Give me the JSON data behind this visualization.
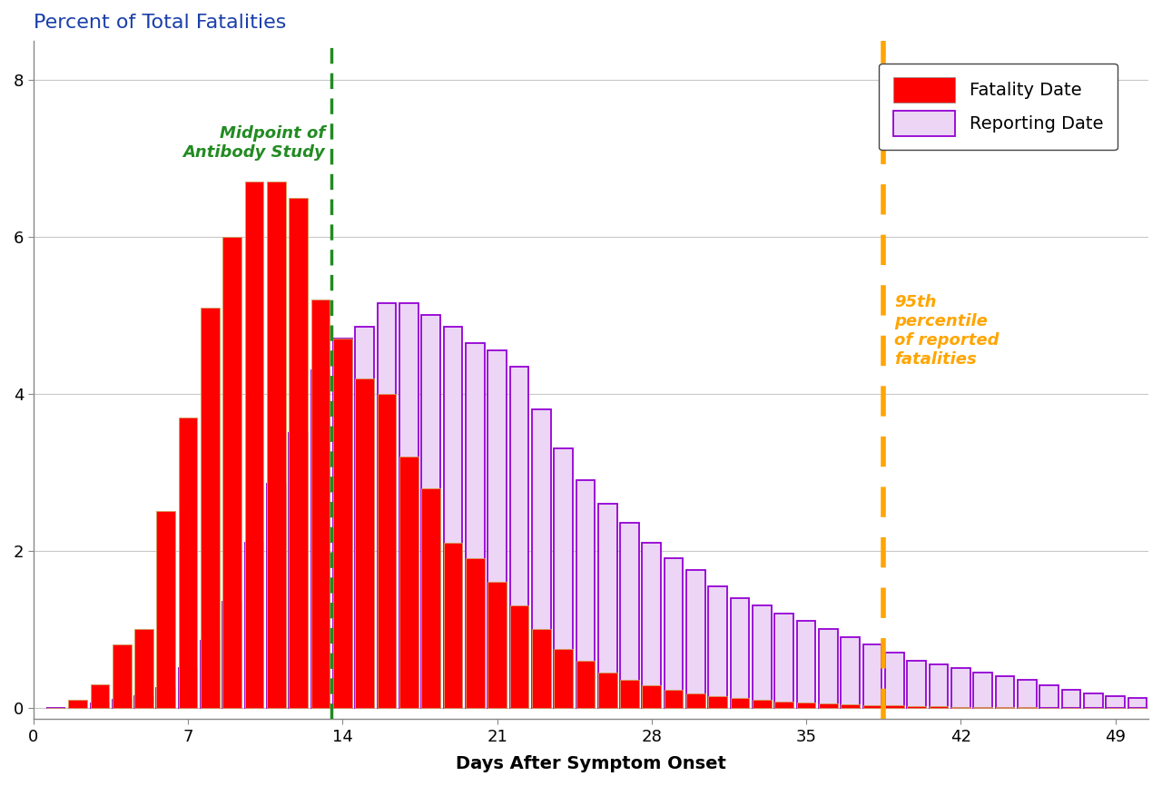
{
  "title": "Percent of Total Fatalities",
  "xlabel": "Days After Symptom Onset",
  "fatality_values": [
    0.0,
    0.1,
    0.3,
    0.8,
    1.0,
    2.5,
    3.7,
    5.1,
    6.0,
    6.7,
    6.7,
    6.5,
    5.2,
    4.7,
    4.2,
    4.0,
    3.2,
    2.8,
    2.1,
    1.9,
    1.6,
    1.3,
    1.0,
    0.75,
    0.6,
    0.45,
    0.35,
    0.28,
    0.22,
    0.18,
    0.14,
    0.12,
    0.1,
    0.08,
    0.06,
    0.05,
    0.04,
    0.03,
    0.03,
    0.02,
    0.02,
    0.01,
    0.01,
    0.01,
    0.01,
    0.0,
    0.0,
    0.0,
    0.0,
    0.0
  ],
  "reporting_values": [
    0.0,
    0.0,
    0.05,
    0.1,
    0.15,
    0.25,
    0.5,
    0.85,
    1.35,
    2.1,
    2.85,
    3.5,
    4.3,
    4.7,
    4.85,
    5.15,
    5.15,
    5.0,
    4.85,
    4.65,
    4.55,
    4.35,
    3.8,
    3.3,
    2.9,
    2.6,
    2.35,
    2.1,
    1.9,
    1.75,
    1.55,
    1.4,
    1.3,
    1.2,
    1.1,
    1.0,
    0.9,
    0.8,
    0.7,
    0.6,
    0.55,
    0.5,
    0.45,
    0.4,
    0.35,
    0.28,
    0.22,
    0.18,
    0.15,
    0.12
  ],
  "red_color": "#FF0000",
  "lavender_face_color": "#ECD5F5",
  "lavender_edge_color": "#9400D3",
  "red_edge_color": "#D2A060",
  "green_line_x": 13.5,
  "orange_line_x": 38.5,
  "green_color": "#228B22",
  "orange_color": "#FFA500",
  "green_label": "Midpoint of\nAntibody Study",
  "orange_label": "95th\npercentile\nof reported\nfatalities",
  "legend_fatality": "Fatality Date",
  "legend_reporting": "Reporting Date",
  "bar_start": 1,
  "xlim": [
    0,
    50.5
  ],
  "ylim": [
    -0.15,
    8.5
  ],
  "xticks": [
    0,
    7,
    14,
    21,
    28,
    35,
    42,
    49
  ],
  "yticks": [
    0,
    2,
    4,
    6,
    8
  ],
  "title_color": "#1a3faa",
  "background_color": "#FFFFFF",
  "grid_color": "#C8C8C8",
  "title_fontsize": 16,
  "axis_label_fontsize": 14,
  "tick_fontsize": 13,
  "annotation_fontsize": 13,
  "bar_width": 0.85
}
